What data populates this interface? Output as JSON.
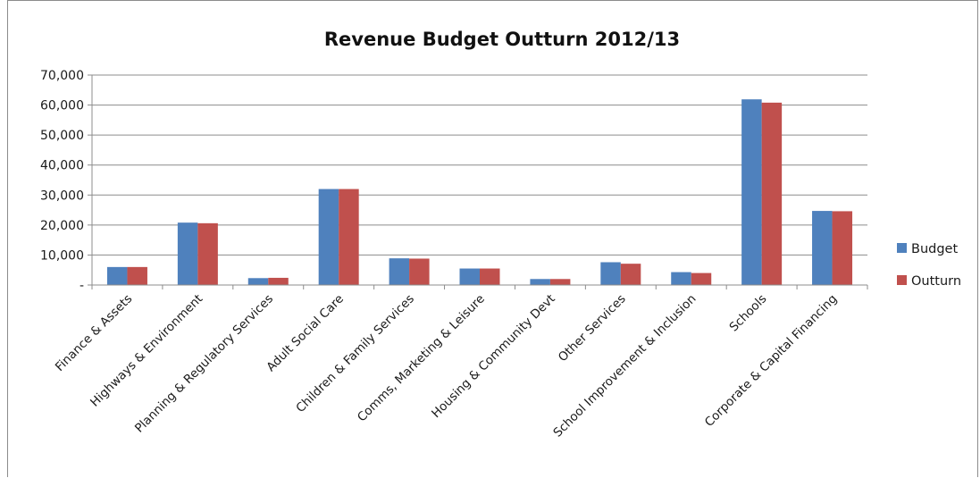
{
  "chart_data": {
    "type": "bar",
    "title": "Revenue Budget Outturn 2012/13",
    "xlabel": "",
    "ylabel": "",
    "ylim": [
      0,
      70000
    ],
    "yticks": [
      0,
      10000,
      20000,
      30000,
      40000,
      50000,
      60000,
      70000
    ],
    "ytick_labels": [
      "-",
      "10,000",
      "20,000",
      "30,000",
      "40,000",
      "50,000",
      "60,000",
      "70,000"
    ],
    "grid": true,
    "legend_position": "right",
    "categories": [
      "Finance & Assets",
      "Highways & Environment",
      "Planning & Regulatory Services",
      "Adult Social Care",
      "Children & Family Services",
      "Comms, Marketing  & Leisure",
      "Housing & Community Devt",
      "Other Services",
      "School Improvement & Inclusion",
      "Schools",
      "Corporate & Capital Financing"
    ],
    "series": [
      {
        "name": "Budget",
        "color": "#4f81bd",
        "values": [
          6000,
          20800,
          2300,
          32000,
          8900,
          5500,
          2000,
          7600,
          4300,
          61900,
          24700
        ]
      },
      {
        "name": "Outturn",
        "color": "#c0504d",
        "values": [
          6000,
          20600,
          2400,
          32000,
          8800,
          5500,
          2000,
          7100,
          4000,
          60800,
          24600
        ]
      }
    ]
  }
}
